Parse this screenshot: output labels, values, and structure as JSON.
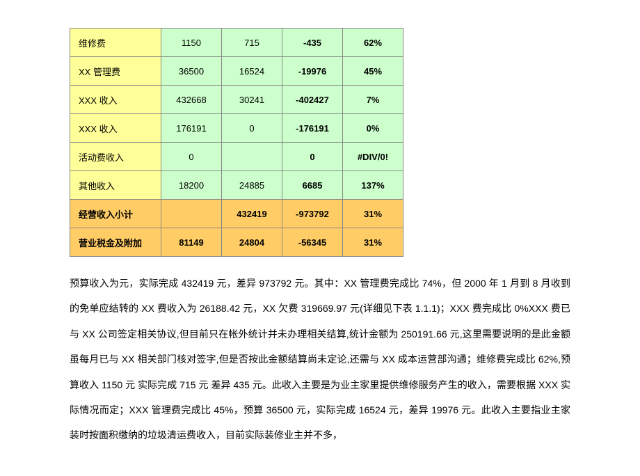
{
  "table": {
    "rows": [
      {
        "label": "维修费",
        "c1": "1150",
        "c2": "715",
        "c3": "-435",
        "c4": "62%",
        "style": "normal"
      },
      {
        "label": "XX 管理费",
        "c1": "36500",
        "c2": "16524",
        "c3": "-19976",
        "c4": "45%",
        "style": "normal"
      },
      {
        "label": "XXX 收入",
        "c1": "432668",
        "c2": "30241",
        "c3": "-402427",
        "c4": "7%",
        "style": "normal"
      },
      {
        "label": "XXX 收入",
        "c1": "176191",
        "c2": "0",
        "c3": "-176191",
        "c4": "0%",
        "style": "normal"
      },
      {
        "label": "活动费收入",
        "c1": "0",
        "c2": "",
        "c3": "0",
        "c4": "#DIV/0!",
        "style": "normal"
      },
      {
        "label": "其他收入",
        "c1": "18200",
        "c2": "24885",
        "c3": "6685",
        "c4": "137%",
        "style": "normal"
      },
      {
        "label": "经营收入小计",
        "c1": "",
        "c2": "432419",
        "c3": "-973792",
        "c4": "31%",
        "style": "total"
      },
      {
        "label": "营业税金及附加",
        "c1": "81149",
        "c2": "24804",
        "c3": "-56345",
        "c4": "31%",
        "style": "total"
      }
    ],
    "colors": {
      "label_bg": "#ffff99",
      "data_bg": "#ccffcc",
      "total_bg": "#ffcc66",
      "border": "#888888",
      "text": "#000000"
    },
    "font": {
      "family": "Microsoft YaHei",
      "size_table": 13,
      "size_paragraph": 14,
      "bold_cols_normal": [
        "c3",
        "c4"
      ],
      "total_row_bold": true
    }
  },
  "paragraph": "预算收入为元，实际完成 432419 元，差异 973792 元。其中：XX 管理费完成比 74%，但 2000 年 1 月到 8 月收到的免单应结转的 XX 费收入为 26188.42 元，XX 欠费 319669.97 元(详细见下表 1.1.1)；XXX 费完成比 0%XXX 费已与 XX 公司签定相关协议,但目前只在帐外统计并未办理相关结算,统计金额为 250191.66 元,这里需要说明的是此金额虽每月已与 XX 相关部门核对签字,但是否按此金额结算尚未定论,还需与 XX 成本运营部沟通；维修费完成比 62%,预算收入 1150 元 实际完成 715 元 差异 435 元。此收入主要是为业主家里提供维修服务产生的收入，需要根据 XXX 实际情况而定；XXX 管理费完成比 45%，预算 36500 元，实际完成 16524 元，差异 19976 元。此收入主要指业主家装时按面积缴纳的垃圾清运费收入，目前实际装修业主并不多，"
}
